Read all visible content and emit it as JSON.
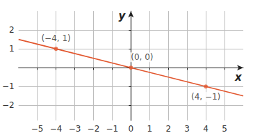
{
  "chart_data": {
    "type": "line",
    "x": [
      -6,
      -4,
      0,
      4,
      6
    ],
    "values": [
      1.5,
      1,
      0,
      -1,
      -1.5
    ],
    "color": "#e2572f",
    "points": [
      {
        "x": -4,
        "y": 1,
        "label": "(−4, 1)"
      },
      {
        "x": 0,
        "y": 0,
        "label": "(0, 0)"
      },
      {
        "x": 4,
        "y": -1,
        "label": "(4, −1)"
      }
    ],
    "x_label": "x",
    "y_label": "y",
    "xlim": [
      -6,
      6
    ],
    "ylim": [
      -2.8,
      3
    ],
    "xticks": [
      {
        "value": -5,
        "label": "−5"
      },
      {
        "value": -4,
        "label": "−4"
      },
      {
        "value": -3,
        "label": "−3"
      },
      {
        "value": -2,
        "label": "−2"
      },
      {
        "value": -1,
        "label": "−1"
      },
      0,
      1,
      2,
      3,
      4,
      5
    ],
    "yticks": [
      {
        "value": -2,
        "label": "−2"
      },
      {
        "value": -1,
        "label": "−1"
      },
      1,
      2
    ],
    "grid": true
  }
}
